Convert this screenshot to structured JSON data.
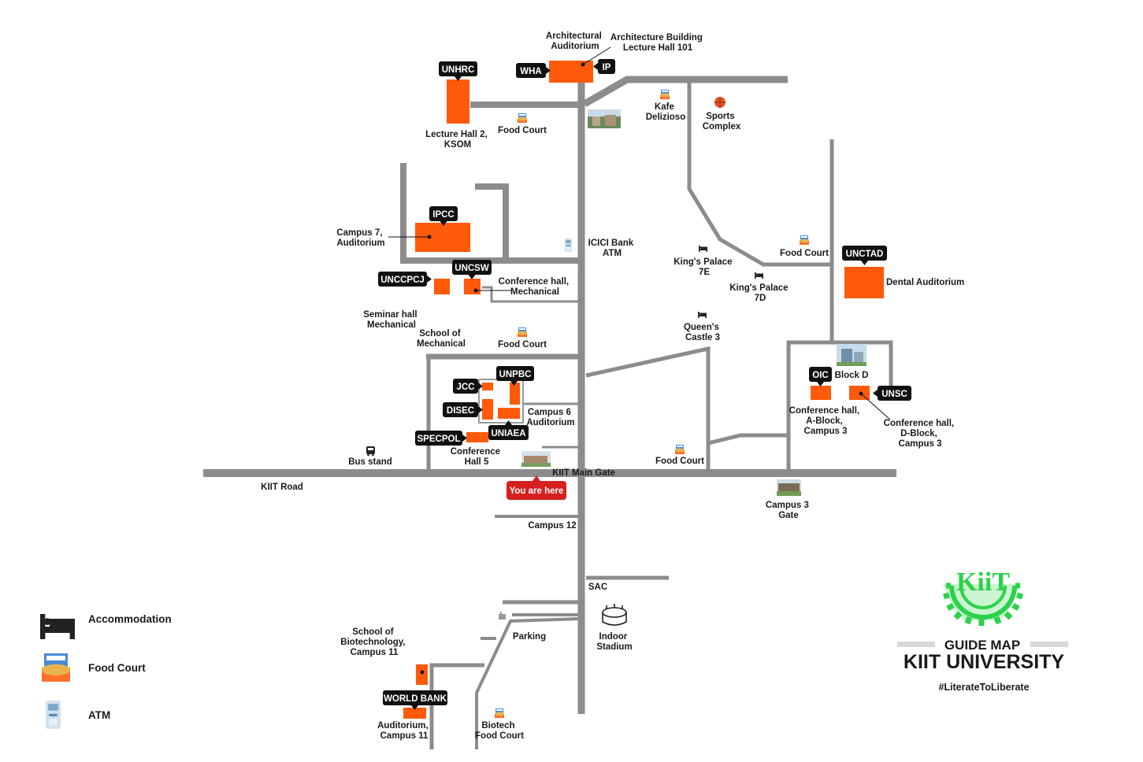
{
  "road": {
    "kiit_road": "KIIT Road",
    "main_gate": "KIIT Main Gate"
  },
  "you_are_here": "You are here",
  "tags": {
    "whа": "WHA",
    "ip": "IP",
    "unhrc": "UNHRC",
    "ipcc": "IPCC",
    "uncsw": "UNCSW",
    "unccpcj": "UNCCPCJ",
    "unpbc": "UNPBC",
    "jcc": "JCC",
    "disec": "DISEC",
    "uniaea": "UNIAEA",
    "specpol": "SPECPOL",
    "unctad": "UNCTAD",
    "oic": "OIC",
    "unsc": "UNSC",
    "world_bank": "WORLD BANK"
  },
  "labels": {
    "arch_auditorium": [
      "Architectural",
      "Auditorium"
    ],
    "arch_building": [
      "Architecture Building",
      "Lecture Hall 101"
    ],
    "lecture_hall_2": [
      "Lecture Hall 2,",
      "KSOM"
    ],
    "food_court_top": "Food Court",
    "kafe": [
      "Kafe",
      "Delizioso"
    ],
    "sports": [
      "Sports",
      "Complex"
    ],
    "campus7": [
      "Campus 7,",
      "Auditorium"
    ],
    "icici": [
      "ICICI Bank",
      "ATM"
    ],
    "kings_7e": [
      "King's Palace",
      "7E"
    ],
    "food_court_right": "Food Court",
    "kings_7d": [
      "King's Palace",
      "7D"
    ],
    "dental": "Dental Auditorium",
    "conf_mech": [
      "Conference hall,",
      "Mechanical"
    ],
    "seminar_mech": [
      "Seminar hall",
      "Mechanical"
    ],
    "school_mech": [
      "School of",
      "Mechanical"
    ],
    "food_court_mid": "Food Court",
    "queens": [
      "Queen's",
      "Castle 3"
    ],
    "block_d": "Block D",
    "conf_a": [
      "Conference hall,",
      "A-Block,",
      "Campus 3"
    ],
    "conf_d": [
      "Conference hall,",
      "D-Block,",
      "Campus 3"
    ],
    "campus6": [
      "Campus 6",
      "Auditorium"
    ],
    "conf_hall5": [
      "Conference",
      "Hall 5"
    ],
    "bus_stand": "Bus stand",
    "food_court_c3": "Food Court",
    "campus3_gate": [
      "Campus 3",
      "Gate"
    ],
    "campus12": "Campus 12",
    "sac": "SAC",
    "indoor": [
      "Indoor",
      "Stadium"
    ],
    "parking": "Parking",
    "biotech_school": [
      "School of",
      "Biotechnology,",
      "Campus 11"
    ],
    "auditorium_c11": [
      "Auditorium,",
      "Campus 11"
    ],
    "biotech_food": [
      "Biotech",
      "Food Court"
    ]
  },
  "legend": {
    "items": [
      {
        "icon": "bed-icon",
        "label": "Accommodation"
      },
      {
        "icon": "food-court-icon",
        "label": "Food Court"
      },
      {
        "icon": "atm-icon",
        "label": "ATM"
      }
    ]
  },
  "branding": {
    "logo": "KiiT",
    "guide_map": "GUIDE MAP",
    "university": "KIIT UNIVERSITY",
    "hashtag": "#LiterateToLiberate"
  },
  "colors": {
    "building": "#ff5a0a",
    "road": "#8c8c8c",
    "tag": "#111111",
    "marker": "#d62020",
    "logo": "#2bd24a"
  }
}
